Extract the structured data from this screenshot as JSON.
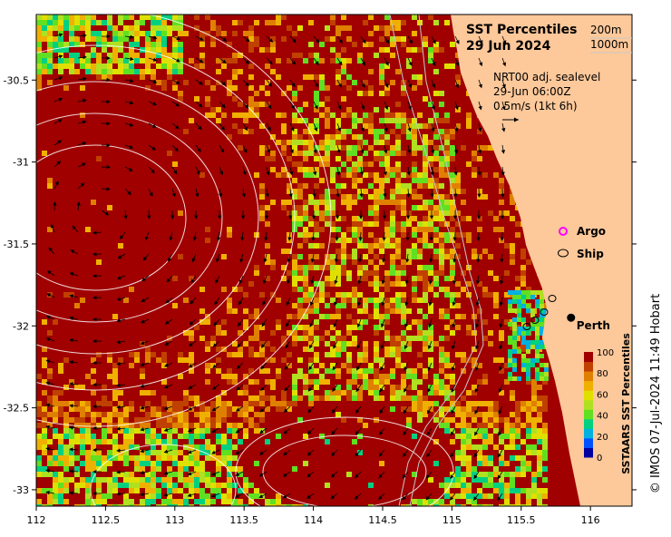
{
  "map": {
    "title_line1": "SST Percentiles",
    "title_line2": "29 Jun 2024",
    "depth_contours": [
      "200m",
      "1000m"
    ],
    "product": "NRT00 adj. sealevel",
    "time": "29-Jun 06:00Z",
    "vector_scale": "0.5m/s (1kt 6h)",
    "extent": {
      "lon_min": 112,
      "lon_max": 116.3,
      "lat_min": -33.1,
      "lat_max": -30.1
    },
    "x_ticks": [
      "112",
      "112.5",
      "113",
      "113.5",
      "114",
      "114.5",
      "115",
      "115.5",
      "116"
    ],
    "y_ticks": [
      "-30.5",
      "-31",
      "-31.5",
      "-32",
      "-32.5",
      "-33"
    ],
    "legend": {
      "argo_label": "Argo",
      "ship_label": "Ship",
      "argo_color": "#ff00ff"
    },
    "city": {
      "name": "Perth",
      "lon": 115.86,
      "lat": -31.95
    },
    "colorbar": {
      "title": "SSTAARS SST Percentiles",
      "ticks": [
        "100",
        "80",
        "60",
        "40",
        "20",
        "0"
      ],
      "colors": [
        "#0000a0",
        "#0050ff",
        "#00b0e0",
        "#00d080",
        "#60e020",
        "#b0e020",
        "#e0e000",
        "#f0b000",
        "#e08000",
        "#c04000",
        "#a00000"
      ]
    },
    "land_color": "#fdc89a",
    "copyright": "© IMOS 07-Jul-2024 11:49 Hobart"
  }
}
